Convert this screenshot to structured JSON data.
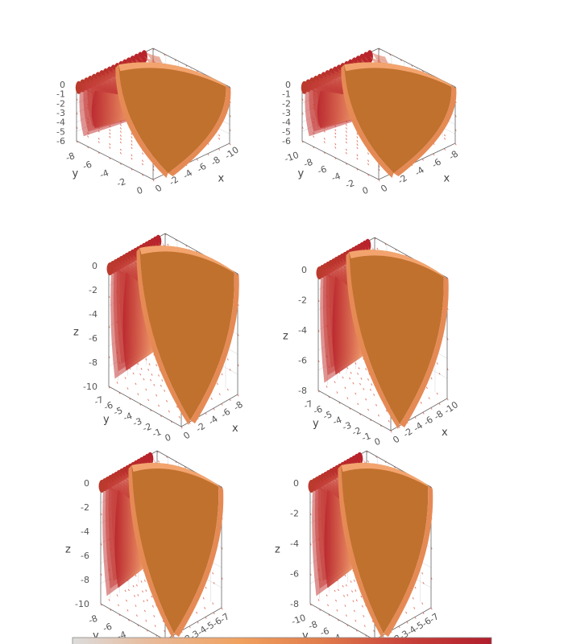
{
  "colors": {
    "background": "#ffffff",
    "box_edge": "#666666",
    "grid": "#dddddd",
    "quiver": "#d9503a",
    "shell_light": "#f3a46e",
    "shell_mid": "#e58a55",
    "shell_dark": "#c0712e",
    "fan_start": "#d9d9dc",
    "fan_end": "#b8232c",
    "cone_core": "#c9d0d8"
  },
  "colorbar": {
    "stops": [
      "#dcdcdc",
      "#e9b896",
      "#f0a15f",
      "#e07b4c",
      "#c8413a",
      "#b01e2c"
    ]
  },
  "chart_data": [
    {
      "type": "3d-surface-quiver",
      "id": "panel-1",
      "x_ticks": [
        "0",
        "-2",
        "-4",
        "-6",
        "-8",
        "-10"
      ],
      "y_ticks": [
        "0",
        "-2",
        "-4",
        "-6",
        "-8"
      ],
      "z_ticks": [
        "0",
        "-1",
        "-2",
        "-3",
        "-4",
        "-5",
        "-6"
      ],
      "xlabel": "x",
      "ylabel": "y",
      "zlabel": "",
      "view": "top"
    },
    {
      "type": "3d-surface-quiver",
      "id": "panel-2",
      "x_ticks": [
        "0",
        "-2",
        "-4",
        "-6",
        "-8"
      ],
      "y_ticks": [
        "0",
        "-2",
        "-4",
        "-6",
        "-8",
        "-10"
      ],
      "z_ticks": [
        "0",
        "-1",
        "-2",
        "-3",
        "-4",
        "-5",
        "-6"
      ],
      "xlabel": "x",
      "ylabel": "y",
      "zlabel": "",
      "view": "top"
    },
    {
      "type": "3d-surface-quiver",
      "id": "panel-3",
      "x_ticks": [
        "0",
        "-2",
        "-4",
        "-6",
        "-8"
      ],
      "y_ticks": [
        "0",
        "-1",
        "-2",
        "-3",
        "-4",
        "-5",
        "-6",
        "-7"
      ],
      "z_ticks": [
        "0",
        "-2",
        "-4",
        "-6",
        "-8",
        "-10"
      ],
      "xlabel": "x",
      "ylabel": "y",
      "zlabel": "z",
      "view": "side"
    },
    {
      "type": "3d-surface-quiver",
      "id": "panel-4",
      "x_ticks": [
        "0",
        "-2",
        "-4",
        "-6",
        "-8",
        "-10"
      ],
      "y_ticks": [
        "0",
        "-1",
        "-2",
        "-3",
        "-4",
        "-5",
        "-6",
        "-7"
      ],
      "z_ticks": [
        "0",
        "-2",
        "-4",
        "-6",
        "-8"
      ],
      "xlabel": "x",
      "ylabel": "y",
      "zlabel": "z",
      "view": "side"
    },
    {
      "type": "3d-surface-quiver",
      "id": "panel-5",
      "x_ticks": [
        "0",
        "-1",
        "-2",
        "-3",
        "-4",
        "-5",
        "-6",
        "-7"
      ],
      "y_ticks": [
        "0",
        "-2",
        "-4",
        "-6",
        "-8"
      ],
      "z_ticks": [
        "0",
        "-2",
        "-4",
        "-6",
        "-8",
        "-10"
      ],
      "xlabel": "x",
      "ylabel": "y",
      "zlabel": "z",
      "view": "low"
    },
    {
      "type": "3d-surface-quiver",
      "id": "panel-6",
      "x_ticks": [
        "0",
        "-1",
        "-2",
        "-3",
        "-4",
        "-5",
        "-6",
        "-7"
      ],
      "y_ticks": [
        "0",
        "-2",
        "-4",
        "-6",
        "-8",
        "-10"
      ],
      "z_ticks": [
        "0",
        "-2",
        "-4",
        "-6",
        "-8"
      ],
      "xlabel": "x",
      "ylabel": "y",
      "zlabel": "z",
      "view": "low"
    }
  ]
}
